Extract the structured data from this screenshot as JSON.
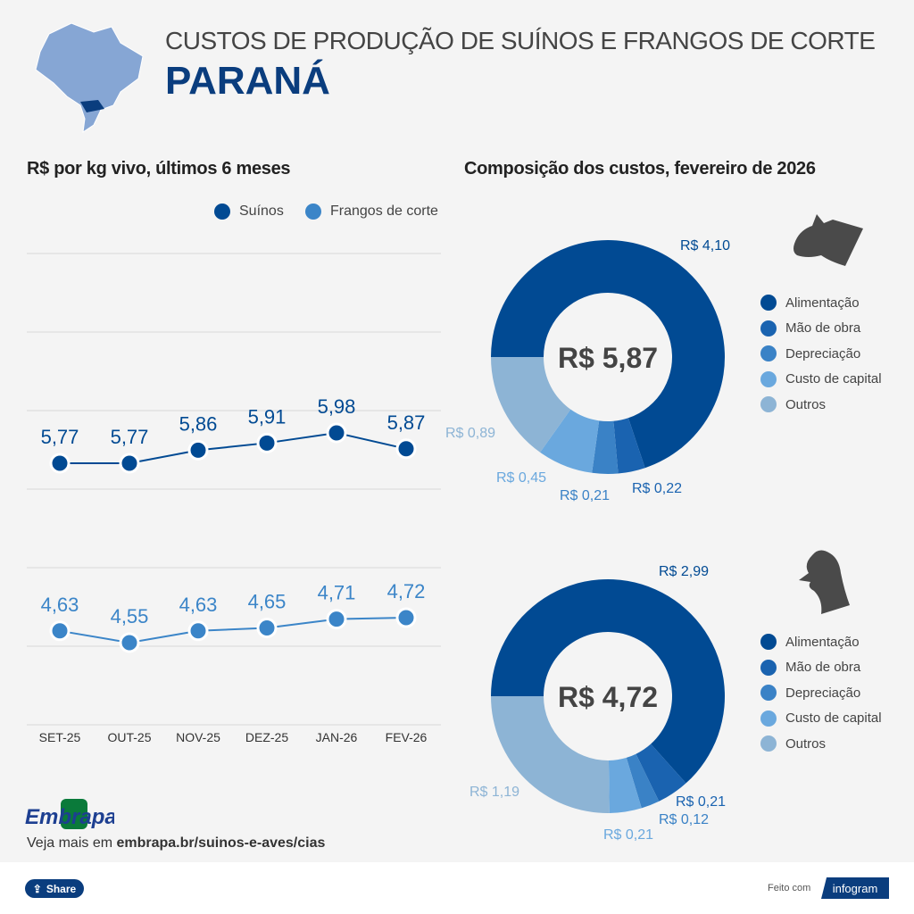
{
  "header": {
    "title": "CUSTOS DE PRODUÇÃO DE SUÍNOS E FRANGOS DE CORTE",
    "state": "PARANÁ"
  },
  "chart_data": [
    {
      "type": "line",
      "title": "R$ por kg vivo, últimos 6 meses",
      "categories": [
        "SET-25",
        "OUT-25",
        "NOV-25",
        "DEZ-25",
        "JAN-26",
        "FEV-26"
      ],
      "series": [
        {
          "name": "Suínos",
          "color": "#014a93",
          "values": [
            5.77,
            5.77,
            5.86,
            5.91,
            5.98,
            5.87
          ],
          "labels": [
            "5,77",
            "5,77",
            "5,86",
            "5,91",
            "5,98",
            "5,87"
          ]
        },
        {
          "name": "Frangos de corte",
          "color": "#3b85c8",
          "values": [
            4.63,
            4.55,
            4.63,
            4.65,
            4.71,
            4.72
          ],
          "labels": [
            "4,63",
            "4,55",
            "4,63",
            "4,65",
            "4,71",
            "4,72"
          ]
        }
      ],
      "grid": true,
      "legend": "top-right"
    },
    {
      "type": "pie",
      "title": "Composição dos custos, fevereiro de 2026",
      "subject": "pig-icon",
      "total": "R$ 5,87",
      "categories": [
        "Alimentação",
        "Mão de obra",
        "Depreciação",
        "Custo de capital",
        "Outros"
      ],
      "values": [
        4.1,
        0.22,
        0.21,
        0.45,
        0.89
      ],
      "labels": [
        "R$ 4,10",
        "R$ 0,22",
        "R$ 0,21",
        "R$ 0,45",
        "R$ 0,89"
      ],
      "colors": [
        "#014a93",
        "#1a63b0",
        "#3a82c6",
        "#6aa8de",
        "#8db4d5"
      ]
    },
    {
      "type": "pie",
      "subject": "chicken-icon",
      "total": "R$ 4,72",
      "categories": [
        "Alimentação",
        "Mão de obra",
        "Depreciação",
        "Custo de capital",
        "Outros"
      ],
      "values": [
        2.99,
        0.21,
        0.12,
        0.21,
        1.19
      ],
      "labels": [
        "R$ 2,99",
        "R$ 0,21",
        "R$ 0,12",
        "R$ 0,21",
        "R$ 1,19"
      ],
      "colors": [
        "#014a93",
        "#1a63b0",
        "#3a82c6",
        "#6aa8de",
        "#8db4d5"
      ]
    }
  ],
  "footer": {
    "logo": "Embrapa",
    "more_prefix": "Veja mais em ",
    "more_link": "embrapa.br/suinos-e-aves/cias",
    "share": "Share",
    "made_with": "Feito com",
    "infogram": "infogram"
  }
}
